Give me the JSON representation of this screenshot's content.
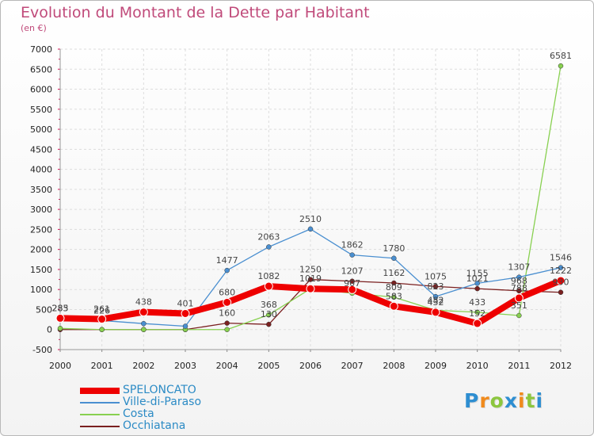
{
  "title": "Evolution du Montant de la Dette par Habitant",
  "subtitle": "(en €)",
  "logo": {
    "text": "Proxiti",
    "letters": [
      {
        "ch": "P",
        "color": "#2e8ed1"
      },
      {
        "ch": "r",
        "color": "#f08a1c"
      },
      {
        "ch": "o",
        "color": "#8cc63e"
      },
      {
        "ch": "x",
        "color": "#2e8ed1"
      },
      {
        "ch": "i",
        "color": "#f08a1c"
      },
      {
        "ch": "t",
        "color": "#8cc63e"
      },
      {
        "ch": "i",
        "color": "#2e8ed1"
      }
    ]
  },
  "colors": {
    "axis_text": "#222222",
    "grid": "#dddddd",
    "tick_marks": "#d01050",
    "value_labels": "#444444",
    "legend_text": "#2c8bc5"
  },
  "chart_data": {
    "type": "line",
    "x": [
      2000,
      2001,
      2002,
      2003,
      2004,
      2005,
      2006,
      2007,
      2008,
      2009,
      2010,
      2011,
      2012
    ],
    "ylim": [
      -500,
      7000
    ],
    "yticks": [
      -500,
      0,
      500,
      1000,
      1500,
      2000,
      2500,
      3000,
      3500,
      4000,
      4500,
      5000,
      5500,
      6000,
      6500,
      7000
    ],
    "grid": "horizontal",
    "legend_position": "bottom-left",
    "series": [
      {
        "name": "SPELONCATO",
        "color": "#ee0000",
        "width": 8,
        "values": [
          283,
          261,
          438,
          401,
          680,
          1082,
          1019,
          998,
          583,
          432,
          152,
          788,
          1222
        ],
        "labels": [
          "283",
          "261",
          "438",
          "401",
          "680",
          "1082",
          "",
          "",
          "583",
          "432",
          "152",
          "788",
          "1222"
        ]
      },
      {
        "name": "Ville-di-Paraso",
        "color": "#4a8fd0",
        "width": 1.3,
        "values": [
          285,
          226,
          149,
          84,
          1477,
          2063,
          2510,
          1862,
          1780,
          823,
          1155,
          1307,
          1546
        ],
        "labels": [
          "285",
          "226",
          "",
          "",
          "1477",
          "2063",
          "2510",
          "1862",
          "1780",
          "823",
          "1155",
          "1307",
          "1546"
        ]
      },
      {
        "name": "Costa",
        "color": "#88d050",
        "width": 1.3,
        "values": [
          30,
          0,
          0,
          0,
          0,
          368,
          1019,
          907,
          809,
          482,
          433,
          351,
          6581
        ],
        "labels": [
          "",
          "",
          "",
          "",
          "",
          "368",
          "1019",
          "907",
          "809",
          "482",
          "433",
          "351",
          "6581"
        ]
      },
      {
        "name": "Occhiatana",
        "color": "#7a2020",
        "width": 1.3,
        "values": [
          0,
          0,
          0,
          0,
          160,
          130,
          1250,
          1207,
          1162,
          1075,
          1021,
          968,
          930
        ],
        "labels": [
          "",
          "",
          "",
          "",
          "160",
          "130",
          "1250",
          "1207",
          "1162",
          "1075",
          "1021",
          "968",
          "930"
        ]
      }
    ]
  }
}
